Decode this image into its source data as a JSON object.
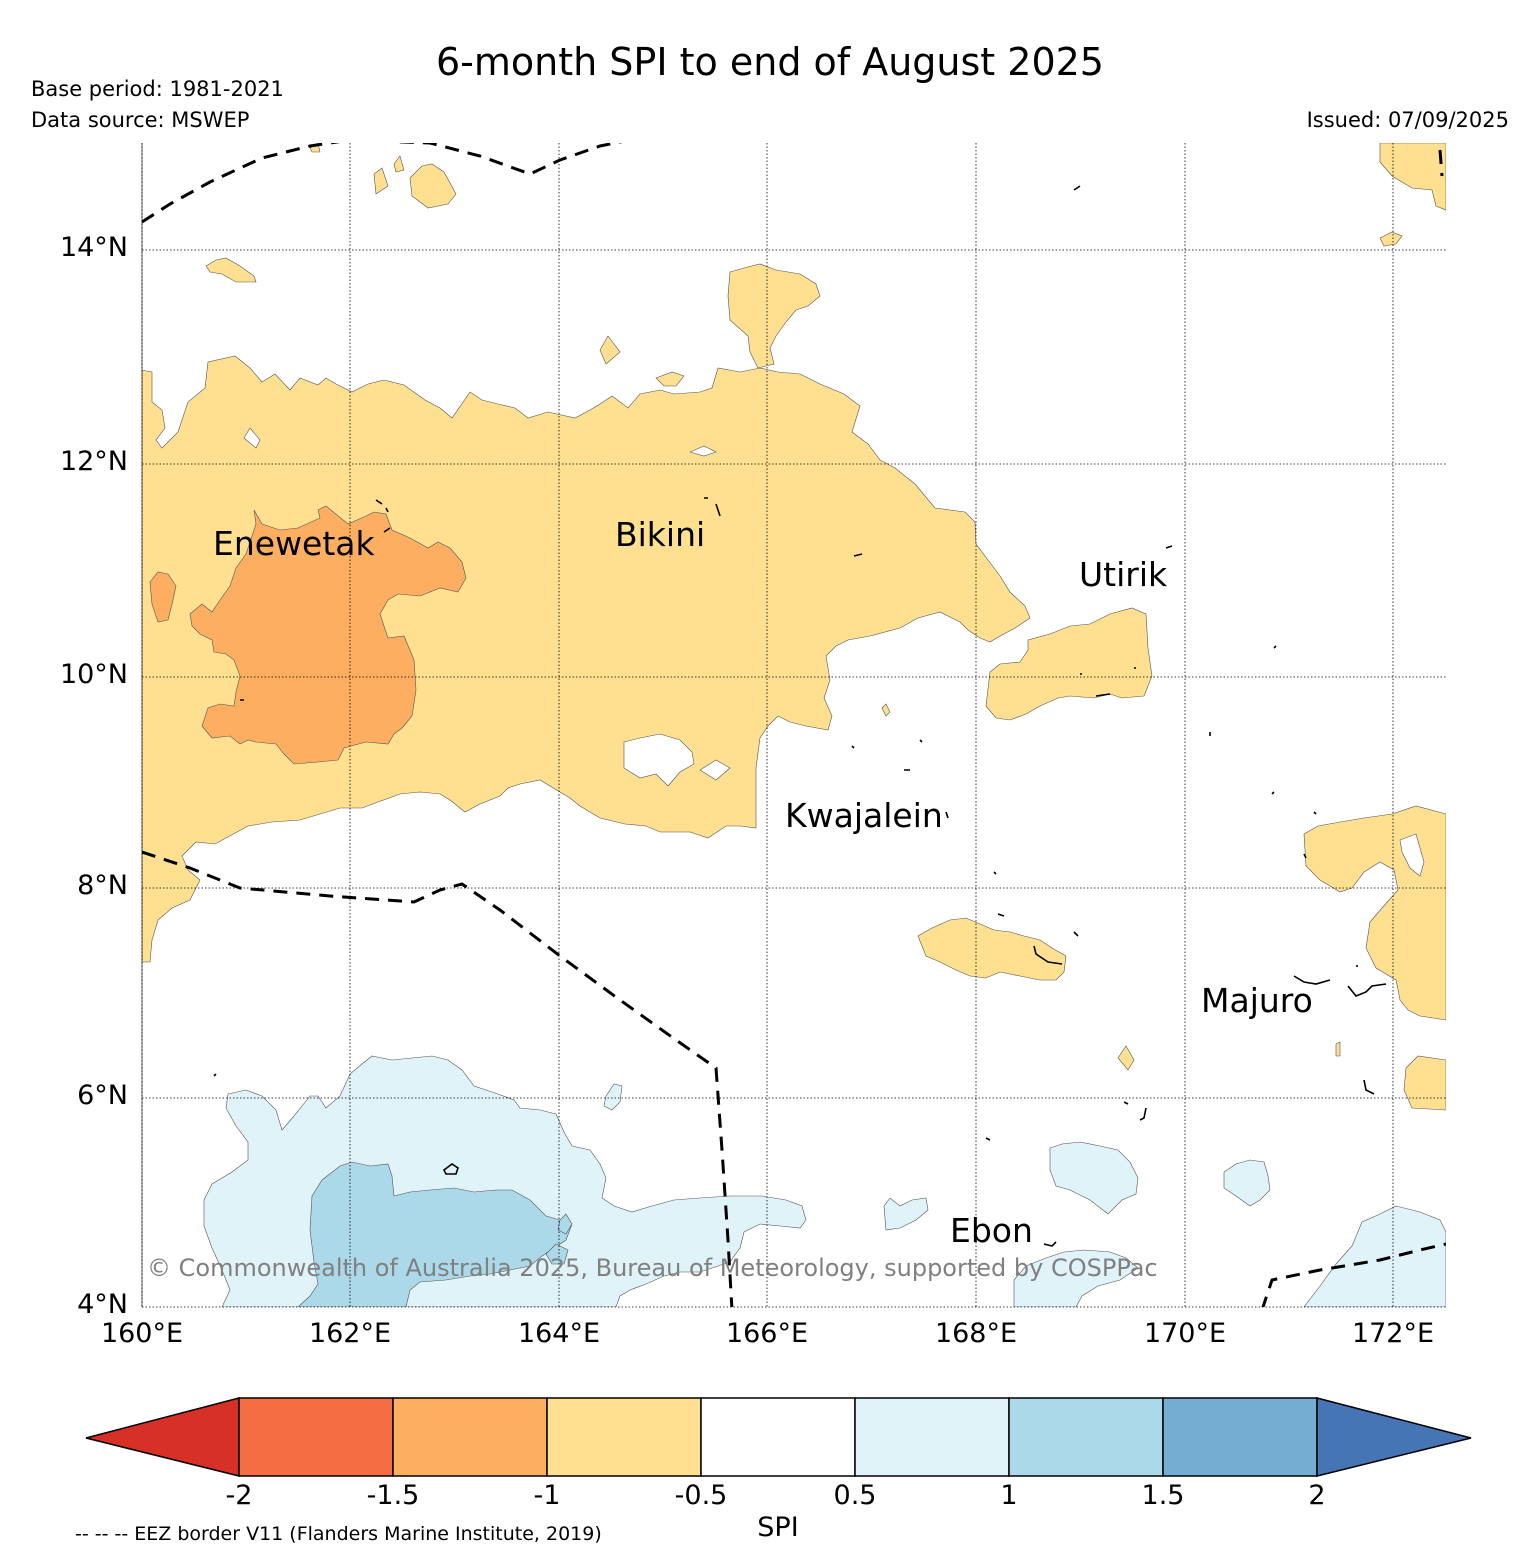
{
  "title": "6-month SPI to end of August 2025",
  "base_period": "Base period: 1981-2021",
  "data_source": "Data source: MSWEP",
  "issued": "Issued: 07/09/2025",
  "lat_labels": [
    "14°N",
    "12°N",
    "10°N",
    "8°N",
    "6°N",
    "4°N"
  ],
  "lon_labels": [
    "160°E",
    "162°E",
    "164°E",
    "166°E",
    "168°E",
    "170°E",
    "172°E"
  ],
  "places": [
    "Enewetak",
    "Bikini",
    "Utirik",
    "Kwajalein",
    "Majuro",
    "Ebon"
  ],
  "copyright": "© Commonwealth of Australia 2025, Bureau of Meteorology, supported by COSPPac",
  "colorbar": {
    "ticks": [
      "-2",
      "-1.5",
      "-1",
      "-0.5",
      "0.5",
      "1",
      "1.5",
      "2"
    ],
    "label": "SPI",
    "colors": {
      "lt_m2": "#d73027",
      "m2_m15": "#f46d43",
      "m15_m1": "#fdae61",
      "m1_m05": "#fee090",
      "m05_05": "#ffffff",
      "05_1": "#e0f3f8",
      "1_15": "#abd9e9",
      "15_2": "#74add1",
      "gt_2": "#4575b4"
    }
  },
  "eez_note": "-- -- -- EEZ border V11 (Flanders Marine Institute, 2019)"
}
